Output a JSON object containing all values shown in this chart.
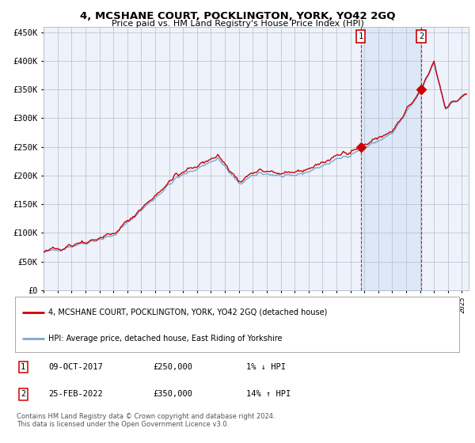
{
  "title": "4, MCSHANE COURT, POCKLINGTON, YORK, YO42 2GQ",
  "subtitle": "Price paid vs. HM Land Registry's House Price Index (HPI)",
  "legend_line1": "4, MCSHANE COURT, POCKLINGTON, YORK, YO42 2GQ (detached house)",
  "legend_line2": "HPI: Average price, detached house, East Riding of Yorkshire",
  "purchase1_date": "09-OCT-2017",
  "purchase1_price": 250000,
  "purchase1_label": "1% ↓ HPI",
  "purchase2_date": "25-FEB-2022",
  "purchase2_price": 350000,
  "purchase2_label": "14% ↑ HPI",
  "footnote": "Contains HM Land Registry data © Crown copyright and database right 2024.\nThis data is licensed under the Open Government Licence v3.0.",
  "bg_color": "#ffffff",
  "plot_bg_color": "#eef2fa",
  "grid_color": "#b8bcd0",
  "hpi_line_color": "#7aa8d4",
  "price_line_color": "#cc0000",
  "shade_color": "#dce8f5",
  "dashed_line_color": "#cc0000",
  "ylim": [
    0,
    460000
  ],
  "yticks": [
    0,
    50000,
    100000,
    150000,
    200000,
    250000,
    300000,
    350000,
    400000,
    450000
  ],
  "start_year": 1995,
  "end_year": 2025
}
